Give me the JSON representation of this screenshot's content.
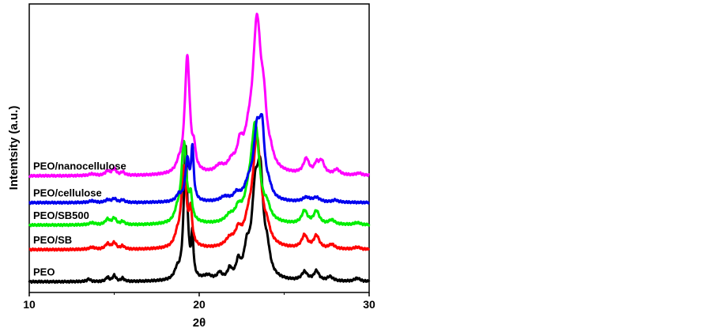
{
  "chart_data": {
    "type": "line",
    "title": "",
    "xlabel": "2θ",
    "ylabel": "Intentsity (a.u.)",
    "xlim": [
      10,
      30
    ],
    "xticks": [
      10,
      20,
      30
    ],
    "grid": false,
    "legend": "inline-left",
    "series": [
      {
        "name": "PEO",
        "color": "#000000",
        "baseline": 0.05,
        "peaks": [
          [
            13.5,
            0.012,
            0.12
          ],
          [
            14.6,
            0.02,
            0.1
          ],
          [
            15.0,
            0.028,
            0.12
          ],
          [
            15.5,
            0.015,
            0.1
          ],
          [
            18.7,
            0.04,
            0.18
          ],
          [
            19.2,
            0.62,
            0.13
          ],
          [
            19.6,
            0.19,
            0.07
          ],
          [
            20.5,
            0.02,
            0.3
          ],
          [
            21.2,
            0.03,
            0.15
          ],
          [
            21.8,
            0.045,
            0.15
          ],
          [
            22.3,
            0.07,
            0.15
          ],
          [
            22.8,
            0.11,
            0.2
          ],
          [
            23.3,
            0.37,
            0.25
          ],
          [
            23.6,
            0.4,
            0.2
          ],
          [
            24.0,
            0.1,
            0.2
          ],
          [
            26.2,
            0.04,
            0.2
          ],
          [
            26.9,
            0.045,
            0.18
          ],
          [
            27.7,
            0.02,
            0.2
          ],
          [
            29.3,
            0.015,
            0.2
          ]
        ]
      },
      {
        "name": "PEO/SB",
        "color": "#ff0000",
        "baseline": 0.2,
        "peaks": [
          [
            13.7,
            0.01,
            0.2
          ],
          [
            14.6,
            0.025,
            0.15
          ],
          [
            15.0,
            0.03,
            0.15
          ],
          [
            15.5,
            0.015,
            0.12
          ],
          [
            18.7,
            0.04,
            0.18
          ],
          [
            19.1,
            0.38,
            0.18
          ],
          [
            19.5,
            0.15,
            0.1
          ],
          [
            21.8,
            0.035,
            0.3
          ],
          [
            22.3,
            0.06,
            0.2
          ],
          [
            22.9,
            0.08,
            0.3
          ],
          [
            23.4,
            0.5,
            0.3
          ],
          [
            24.0,
            0.05,
            0.2
          ],
          [
            26.2,
            0.06,
            0.2
          ],
          [
            26.9,
            0.06,
            0.2
          ],
          [
            27.8,
            0.02,
            0.2
          ],
          [
            29.3,
            0.01,
            0.2
          ]
        ]
      },
      {
        "name": "PEO/SB500",
        "color": "#00ee00",
        "baseline": 0.315,
        "peaks": [
          [
            13.7,
            0.01,
            0.2
          ],
          [
            14.6,
            0.025,
            0.15
          ],
          [
            15.0,
            0.03,
            0.15
          ],
          [
            15.5,
            0.015,
            0.12
          ],
          [
            18.7,
            0.04,
            0.18
          ],
          [
            19.1,
            0.38,
            0.18
          ],
          [
            19.5,
            0.1,
            0.1
          ],
          [
            21.8,
            0.03,
            0.3
          ],
          [
            22.3,
            0.05,
            0.2
          ],
          [
            22.9,
            0.07,
            0.3
          ],
          [
            23.3,
            0.45,
            0.3
          ],
          [
            24.0,
            0.05,
            0.2
          ],
          [
            26.2,
            0.06,
            0.2
          ],
          [
            26.9,
            0.06,
            0.2
          ],
          [
            27.8,
            0.02,
            0.2
          ],
          [
            29.3,
            0.01,
            0.2
          ]
        ]
      },
      {
        "name": "PEO/cellulose",
        "color": "#0000ee",
        "baseline": 0.42,
        "peaks": [
          [
            13.7,
            0.008,
            0.2
          ],
          [
            14.6,
            0.012,
            0.15
          ],
          [
            15.0,
            0.018,
            0.15
          ],
          [
            15.5,
            0.012,
            0.12
          ],
          [
            18.8,
            0.03,
            0.18
          ],
          [
            19.3,
            0.19,
            0.14
          ],
          [
            19.6,
            0.24,
            0.09
          ],
          [
            21.5,
            0.02,
            0.3
          ],
          [
            22.2,
            0.03,
            0.2
          ],
          [
            22.9,
            0.06,
            0.3
          ],
          [
            23.4,
            0.3,
            0.25
          ],
          [
            23.7,
            0.27,
            0.18
          ],
          [
            24.1,
            0.04,
            0.2
          ],
          [
            26.3,
            0.02,
            0.25
          ],
          [
            26.9,
            0.02,
            0.25
          ],
          [
            28.0,
            0.01,
            0.2
          ]
        ]
      },
      {
        "name": "PEO/nanocellulose",
        "color": "#ff00ff",
        "baseline": 0.545,
        "peaks": [
          [
            13.7,
            0.008,
            0.2
          ],
          [
            14.6,
            0.02,
            0.15
          ],
          [
            15.0,
            0.03,
            0.15
          ],
          [
            15.5,
            0.015,
            0.12
          ],
          [
            18.8,
            0.03,
            0.18
          ],
          [
            19.3,
            0.55,
            0.18
          ],
          [
            19.7,
            0.08,
            0.1
          ],
          [
            21.2,
            0.03,
            0.3
          ],
          [
            21.9,
            0.04,
            0.25
          ],
          [
            22.4,
            0.1,
            0.2
          ],
          [
            22.9,
            0.1,
            0.3
          ],
          [
            23.4,
            0.68,
            0.3
          ],
          [
            23.8,
            0.2,
            0.2
          ],
          [
            24.2,
            0.04,
            0.2
          ],
          [
            26.3,
            0.07,
            0.2
          ],
          [
            26.9,
            0.04,
            0.15
          ],
          [
            27.2,
            0.06,
            0.2
          ],
          [
            28.1,
            0.025,
            0.2
          ],
          [
            29.4,
            0.01,
            0.2
          ]
        ]
      }
    ]
  }
}
